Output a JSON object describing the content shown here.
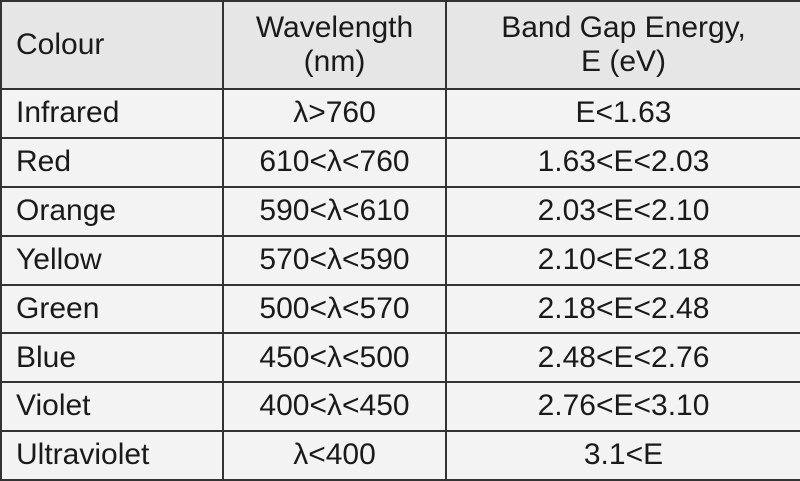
{
  "table": {
    "header": [
      "Colour",
      "Wavelength\n(nm)",
      "Band Gap Energy,\nE (eV)"
    ],
    "rows": [
      [
        "Infrared",
        "λ>760",
        "E<1.63"
      ],
      [
        "Red",
        "610<λ<760",
        "1.63<E<2.03"
      ],
      [
        "Orange",
        "590<λ<610",
        "2.03<E<2.10"
      ],
      [
        "Yellow",
        "570<λ<590",
        "2.10<E<2.18"
      ],
      [
        "Green",
        "500<λ<570",
        "2.18<E<2.48"
      ],
      [
        "Blue",
        "450<λ<500",
        "2.48<E<2.76"
      ],
      [
        "Violet",
        "400<λ<450",
        "2.76<E<3.10"
      ],
      [
        "Ultraviolet",
        "λ<400",
        "3.1<E"
      ]
    ]
  }
}
